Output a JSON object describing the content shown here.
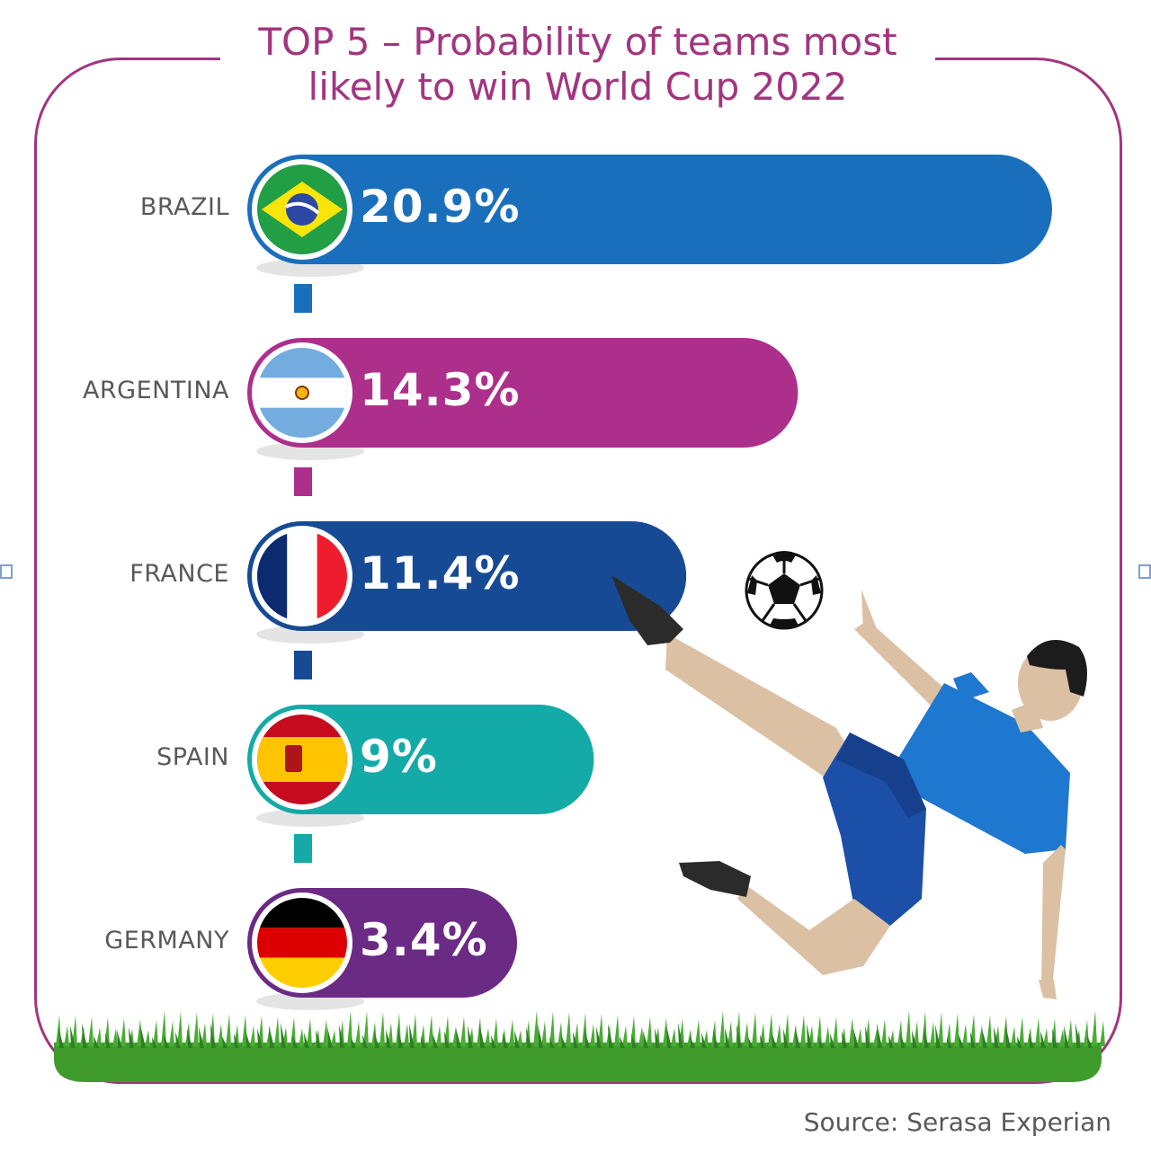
{
  "chart_data": {
    "type": "bar",
    "orientation": "horizontal",
    "title": "TOP 5 – Probability of teams most likely to win World Cup 2022",
    "categories": [
      "BRAZIL",
      "ARGENTINA",
      "FRANCE",
      "SPAIN",
      "GERMANY"
    ],
    "values": [
      20.9,
      14.3,
      11.4,
      9,
      3.4
    ],
    "value_labels": [
      "20.9%",
      "14.3%",
      "11.4%",
      "9%",
      "3.4%"
    ],
    "colors": [
      "#1a6fbd",
      "#ad2f8c",
      "#174a94",
      "#14aaa7",
      "#6b2a84"
    ],
    "flag_icons": [
      "brazil-flag-icon",
      "argentina-flag-icon",
      "france-flag-icon",
      "spain-flag-icon",
      "germany-flag-icon"
    ],
    "unit": "%",
    "grid": false,
    "legend": "none"
  },
  "title_line1": "TOP 5 – Probability of teams most",
  "title_line2": "likely to win World Cup 2022",
  "source": "Source: Serasa Experian",
  "theme": {
    "frame_color": "#a2357f",
    "grass_color": "#3e9b2c"
  },
  "illustration": {
    "icons": [
      "soccer-ball-icon",
      "football-player-illustration",
      "grass-strip"
    ]
  }
}
